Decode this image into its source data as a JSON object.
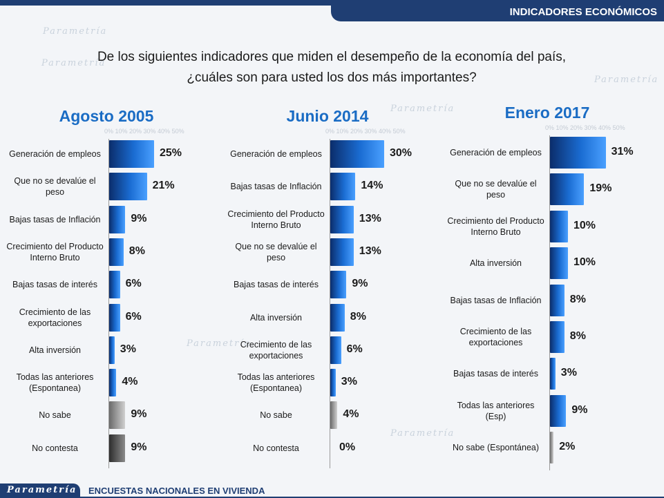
{
  "header": {
    "title": "INDICADORES ECONÓMICOS"
  },
  "question": {
    "line1": "De los siguientes indicadores que miden el desempeño de la economía del país,",
    "line2": "¿cuáles son para usted los dos más importantes?"
  },
  "footer": {
    "logo": "Parametría",
    "text": "ENCUESTAS NACIONALES EN VIVIENDA"
  },
  "background_watermark": "Parametría",
  "colors": {
    "bar_blue": "#1a6cd2",
    "bar_gray": "#bdbdbd",
    "bar_dark": "#555555",
    "title_blue": "#1a6cc4",
    "header_navy": "#1f3e73"
  },
  "chart_data": [
    {
      "type": "bar",
      "orientation": "horizontal",
      "title": "Agosto 2005",
      "tick_labels": "0%  10%  20%  30%  40%  50%",
      "xlim": [
        0,
        50
      ],
      "categories": [
        "Generación de empleos",
        "Que no se devalúe el peso",
        "Bajas tasas de Inflación",
        "Crecimiento del Producto Interno Bruto",
        "Bajas tasas de interés",
        "Crecimiento de las exportaciones",
        "Alta inversión",
        "Todas las anteriores (Espontanea)",
        "No sabe",
        "No contesta"
      ],
      "values": [
        25,
        21,
        9,
        8,
        6,
        6,
        3,
        4,
        9,
        9
      ],
      "labels": [
        "25%",
        "21%",
        "9%",
        "8%",
        "6%",
        "6%",
        "3%",
        "4%",
        "9%",
        "9%"
      ],
      "bar_styles": [
        "blue",
        "blue",
        "blue",
        "blue",
        "blue",
        "blue",
        "blue",
        "blue",
        "gray",
        "dark"
      ]
    },
    {
      "type": "bar",
      "orientation": "horizontal",
      "title": "Junio 2014",
      "tick_labels": "0%  10%  20%  30%  40%  50%",
      "xlim": [
        0,
        50
      ],
      "categories": [
        "Generación de empleos",
        "Bajas tasas de Inflación",
        "Crecimiento del Producto Interno Bruto",
        "Que no se devalúe el peso",
        "Bajas tasas de interés",
        "Alta inversión",
        "Crecimiento de las exportaciones",
        "Todas las anteriores (Espontanea)",
        "No sabe",
        "No contesta"
      ],
      "values": [
        30,
        14,
        13,
        13,
        9,
        8,
        6,
        3,
        4,
        0
      ],
      "labels": [
        "30%",
        "14%",
        "13%",
        "13%",
        "9%",
        "8%",
        "6%",
        "3%",
        "4%",
        "0%"
      ],
      "bar_styles": [
        "blue",
        "blue",
        "blue",
        "blue",
        "blue",
        "blue",
        "blue",
        "blue",
        "gray",
        "dark"
      ]
    },
    {
      "type": "bar",
      "orientation": "horizontal",
      "title": "Enero 2017",
      "tick_labels": "0%  10%  20%  30%  40%  50%",
      "xlim": [
        0,
        50
      ],
      "categories": [
        "Generación de empleos",
        "Que no se devalúe el peso",
        "Crecimiento del Producto Interno Bruto",
        "Alta inversión",
        "Bajas tasas de Inflación",
        "Crecimiento de las exportaciones",
        "Bajas tasas de interés",
        "Todas las anteriores (Esp)",
        "No sabe (Espontánea)"
      ],
      "values": [
        31,
        19,
        10,
        10,
        8,
        8,
        3,
        9,
        2
      ],
      "labels": [
        "31%",
        "19%",
        "10%",
        "10%",
        "8%",
        "8%",
        "3%",
        "9%",
        "2%"
      ],
      "bar_styles": [
        "blue",
        "blue",
        "blue",
        "blue",
        "blue",
        "blue",
        "blue",
        "blue",
        "gray"
      ]
    }
  ]
}
